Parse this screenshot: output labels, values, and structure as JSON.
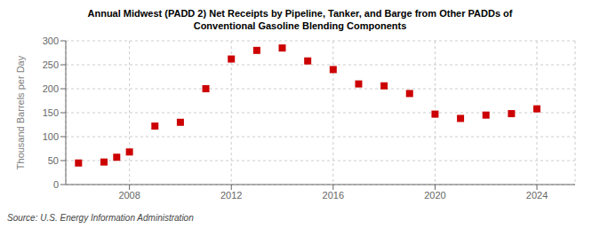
{
  "chart_data": {
    "type": "scatter",
    "title": "Annual Midwest (PADD 2) Net Receipts by Pipeline, Tanker, and Barge from Other PADDs of\nConventional Gasoline Blending Components",
    "ylabel": "Thousand Barrels per Day",
    "source": "Source: U.S. Energy Information Administration",
    "x": [
      2006,
      2007,
      2007.5,
      2008,
      2009,
      2010,
      2011,
      2012,
      2013,
      2014,
      2015,
      2016,
      2017,
      2018,
      2019,
      2020,
      2021,
      2022,
      2023,
      2024
    ],
    "values": [
      45,
      47,
      57,
      68,
      122,
      130,
      200,
      262,
      280,
      285,
      258,
      240,
      210,
      206,
      190,
      147,
      138,
      145,
      148,
      158
    ],
    "color": "#cc0000",
    "marker": "square",
    "xlim": [
      2005.5,
      2025.5
    ],
    "xticks": [
      2008,
      2012,
      2016,
      2020,
      2024
    ],
    "ylim": [
      0,
      300
    ],
    "yticks": [
      0,
      50,
      100,
      150,
      200,
      250,
      300
    ],
    "grid": true
  }
}
